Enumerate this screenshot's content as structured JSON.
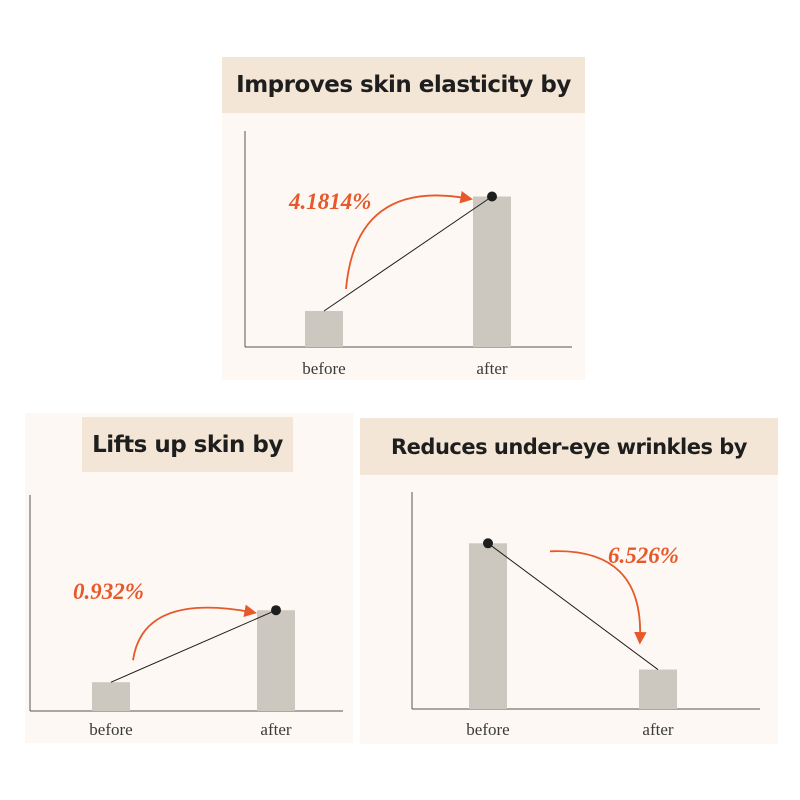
{
  "chart_data": [
    {
      "type": "bar",
      "title": "Improves skin elasticity by",
      "categories": [
        "before",
        "after"
      ],
      "values": [
        1.0,
        4.18
      ],
      "annotation": "4.1814%",
      "direction": "up",
      "ylim": [
        0,
        6
      ],
      "grid": false,
      "colors": {
        "bar": "#cdc8bf",
        "arrow": "#e6592a",
        "line": "#1e1e1e",
        "axis": "#555555"
      }
    },
    {
      "type": "bar",
      "title": "Lifts up skin by",
      "categories": [
        "before",
        "after"
      ],
      "values": [
        1.0,
        3.5
      ],
      "annotation": "0.932%",
      "direction": "up",
      "ylim": [
        0,
        7.5
      ],
      "grid": false,
      "colors": {
        "bar": "#cdc8bf",
        "arrow": "#e6592a",
        "line": "#1e1e1e",
        "axis": "#555555"
      }
    },
    {
      "type": "bar",
      "title": "Reduces under-eye wrinkles by",
      "categories": [
        "before",
        "after"
      ],
      "values": [
        4.2,
        1.0
      ],
      "annotation": "6.526%",
      "direction": "down",
      "ylim": [
        0,
        5.5
      ],
      "grid": false,
      "colors": {
        "bar": "#cdc8bf",
        "arrow": "#e6592a",
        "line": "#1e1e1e",
        "axis": "#555555"
      }
    }
  ]
}
